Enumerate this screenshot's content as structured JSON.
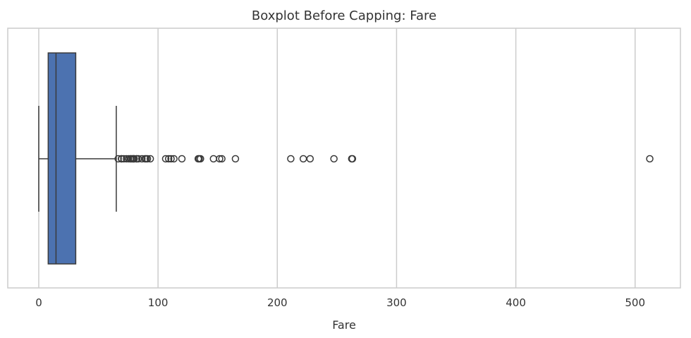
{
  "chart_data": {
    "type": "boxplot",
    "title": "Boxplot Before Capping: Fare",
    "xlabel": "Fare",
    "ylabel": "",
    "xlim": [
      -26,
      538
    ],
    "x_ticks": [
      0,
      100,
      200,
      300,
      400,
      500
    ],
    "x_tick_labels": [
      "0",
      "100",
      "200",
      "300",
      "400",
      "500"
    ],
    "grid": "vertical",
    "box": {
      "whisker_low": 0,
      "q1": 7.9,
      "median": 14.45,
      "q3": 31.0,
      "whisker_high": 65.0
    },
    "outliers": [
      66.6,
      69.3,
      69.5,
      71.3,
      73.5,
      75.3,
      76.7,
      77.3,
      78.3,
      79.2,
      79.65,
      80.0,
      81.9,
      82.2,
      83.5,
      86.5,
      89.1,
      90.0,
      91.1,
      93.5,
      106.4,
      108.9,
      110.9,
      113.3,
      120.0,
      133.7,
      134.5,
      135.6,
      146.5,
      151.6,
      153.5,
      164.9,
      211.3,
      221.8,
      227.5,
      247.5,
      262.4,
      263.0,
      512.3
    ],
    "colors": {
      "box_fill": "#4c72b0",
      "line": "#3a3a3a",
      "grid": "#cccccc",
      "frame": "#cccccc"
    }
  }
}
